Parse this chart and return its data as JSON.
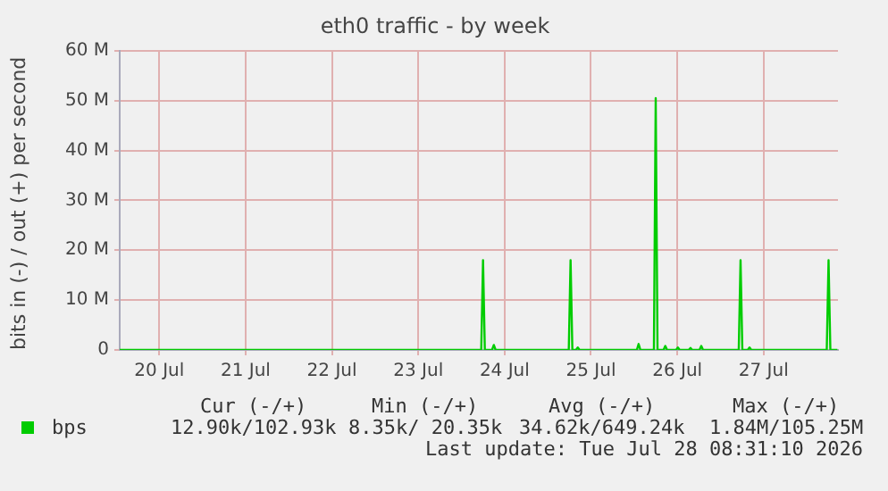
{
  "chart_data": {
    "type": "line",
    "title": "eth0 traffic - by week",
    "ylabel": "bits in (-) / out (+) per second",
    "x": [
      "2026-07-20T01:00",
      "2026-07-24T05:30",
      "2026-07-24T06:00",
      "2026-07-24T06:30",
      "2026-07-24T08:30",
      "2026-07-24T09:00",
      "2026-07-24T09:30",
      "2026-07-25T05:50",
      "2026-07-25T06:20",
      "2026-07-25T06:50",
      "2026-07-25T07:50",
      "2026-07-25T08:20",
      "2026-07-25T08:50",
      "2026-07-26T00:45",
      "2026-07-26T01:15",
      "2026-07-26T01:45",
      "2026-07-26T05:30",
      "2026-07-26T06:00",
      "2026-07-26T06:30",
      "2026-07-26T08:10",
      "2026-07-26T08:40",
      "2026-07-26T09:10",
      "2026-07-26T11:40",
      "2026-07-26T12:10",
      "2026-07-26T12:40",
      "2026-07-26T15:10",
      "2026-07-26T15:40",
      "2026-07-26T16:10",
      "2026-07-26T18:10",
      "2026-07-26T18:40",
      "2026-07-26T19:10",
      "2026-07-27T05:05",
      "2026-07-27T05:35",
      "2026-07-27T06:05",
      "2026-07-27T07:35",
      "2026-07-27T08:05",
      "2026-07-27T08:35",
      "2026-07-28T05:33",
      "2026-07-28T06:03",
      "2026-07-28T06:33",
      "2026-07-28T08:30"
    ],
    "series": [
      {
        "name": "bps",
        "color": "#00cc00",
        "values": [
          0,
          0,
          18000000,
          0,
          0,
          1000000,
          0,
          0,
          18000000,
          0,
          0,
          500000,
          0,
          0,
          1200000,
          0,
          0,
          50500000,
          0,
          0,
          800000,
          0,
          0,
          500000,
          0,
          0,
          400000,
          0,
          0,
          800000,
          0,
          0,
          18000000,
          0,
          0,
          500000,
          0,
          0,
          18000000,
          0,
          0
        ]
      }
    ],
    "xlim": [
      "2026-07-20T01:00",
      "2026-07-28T08:40"
    ],
    "xticks": [
      {
        "value": "2026-07-20T12:00",
        "label": "20 Jul"
      },
      {
        "value": "2026-07-21T12:00",
        "label": "21 Jul"
      },
      {
        "value": "2026-07-22T12:00",
        "label": "22 Jul"
      },
      {
        "value": "2026-07-23T12:00",
        "label": "23 Jul"
      },
      {
        "value": "2026-07-24T12:00",
        "label": "24 Jul"
      },
      {
        "value": "2026-07-25T12:00",
        "label": "25 Jul"
      },
      {
        "value": "2026-07-26T12:00",
        "label": "26 Jul"
      },
      {
        "value": "2026-07-27T12:00",
        "label": "27 Jul"
      }
    ],
    "ylim": [
      0,
      60000000
    ],
    "yticks": [
      {
        "value": 0,
        "label": "0"
      },
      {
        "value": 10000000,
        "label": "10 M"
      },
      {
        "value": 20000000,
        "label": "20 M"
      },
      {
        "value": 30000000,
        "label": "30 M"
      },
      {
        "value": 40000000,
        "label": "40 M"
      },
      {
        "value": 50000000,
        "label": "50 M"
      },
      {
        "value": 60000000,
        "label": "60 M"
      }
    ],
    "grid": true,
    "legend": "bottom left",
    "marker": "none",
    "line_style": "solid",
    "annotations": [
      "Cur (-/+)",
      "Min (-/+)",
      "Avg (-/+)",
      "Max (-/+)",
      "12.90k/102.93k",
      "8.35k/ 20.35k",
      "34.62k/649.24k",
      "1.84M/105.25M",
      "Last update: Tue Jul 28 08:31:10 2026"
    ]
  }
}
